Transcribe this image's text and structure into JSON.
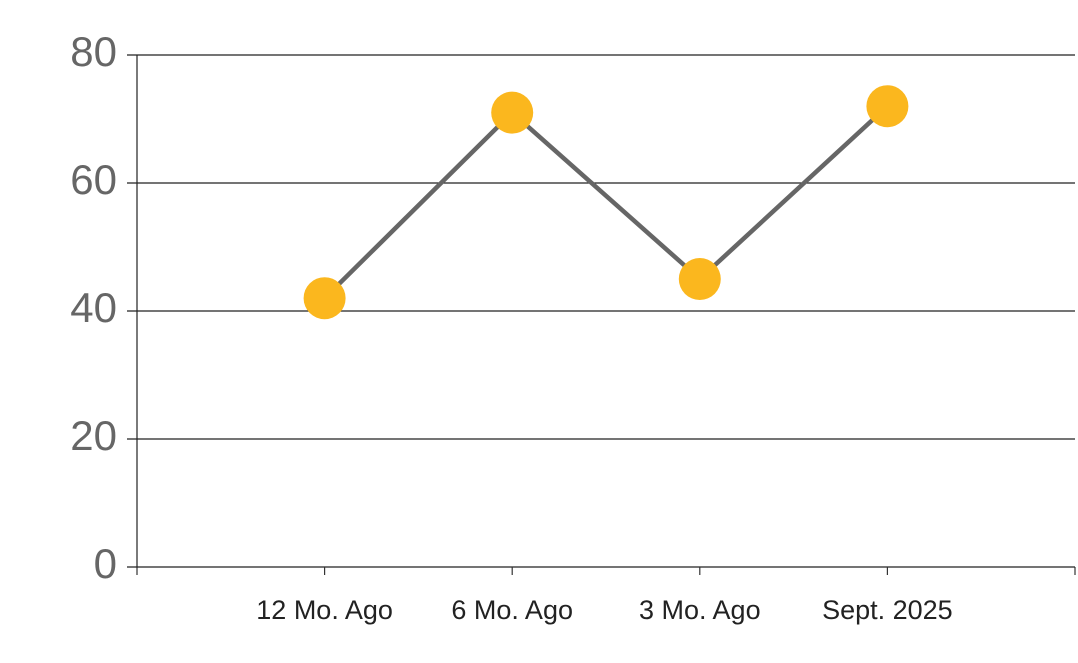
{
  "chart_data": {
    "type": "line",
    "categories": [
      "12 Mo. Ago",
      "6 Mo. Ago",
      "3 Mo. Ago",
      "Sept. 2025"
    ],
    "series": [
      {
        "color": "#fbb71e",
        "values": [
          42,
          71,
          45,
          72
        ]
      }
    ],
    "line_color": "#666666",
    "ylim": [
      0,
      80
    ],
    "yticks": [
      0,
      20,
      40,
      60,
      80
    ],
    "grid": true
  }
}
